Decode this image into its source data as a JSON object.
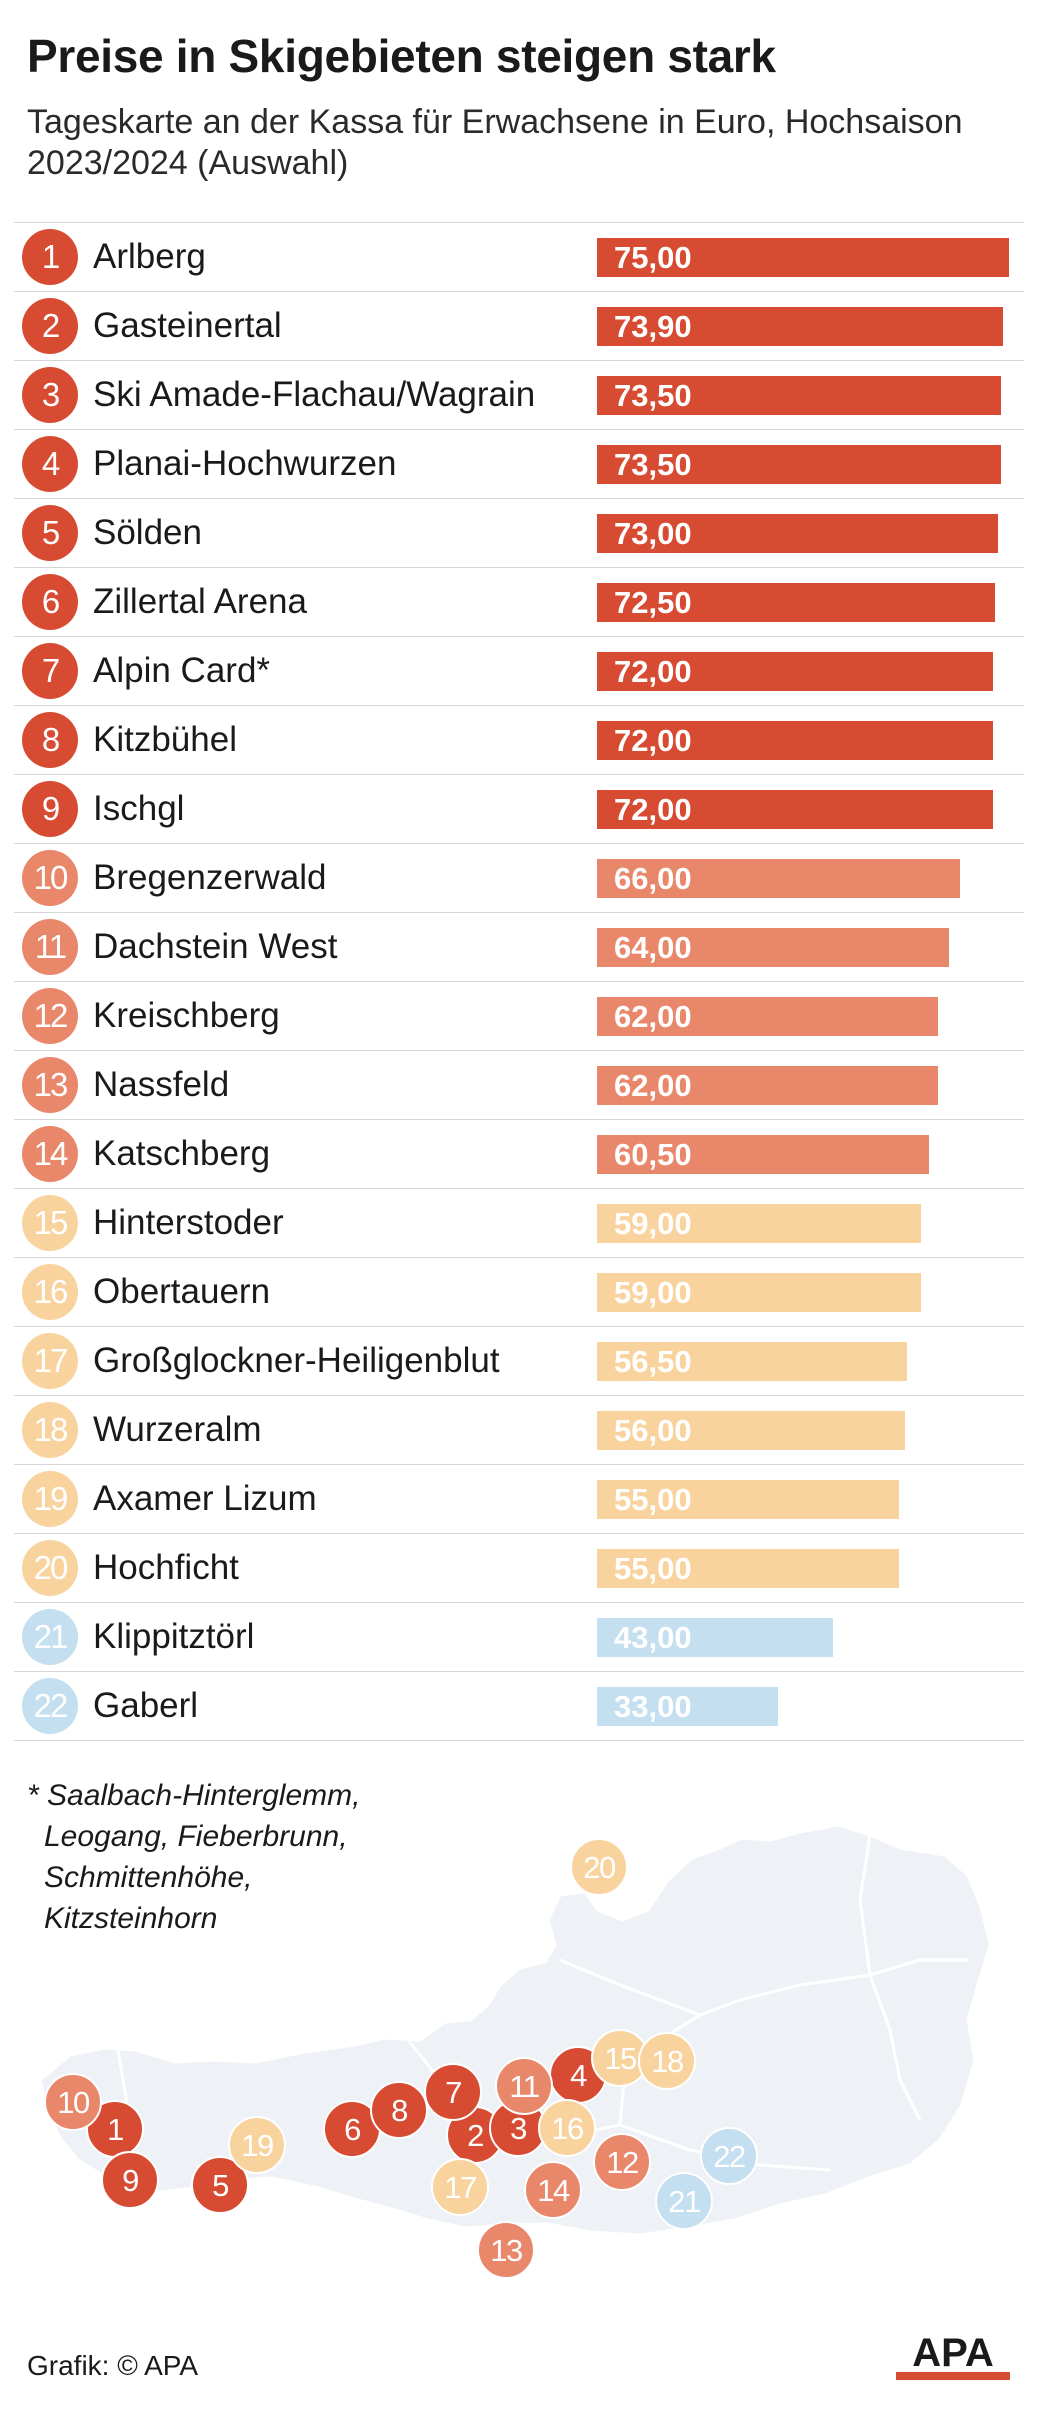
{
  "title": "Preise in Skigebieten steigen stark",
  "subtitle": "Tageskarte an der Kassa für Erwachsene in Euro, Hochsaison 2023/2024 (Auswahl)",
  "colors": {
    "tier1": "#d84b33",
    "tier2": "#e9876a",
    "tier3": "#f9d39e",
    "tier4": "#c3dff0",
    "rule": "#d6d6d6",
    "map_land": "#eef1f5",
    "map_border": "#ffffff"
  },
  "chart_data": {
    "type": "bar",
    "orientation": "horizontal",
    "xlim": [
      0,
      75
    ],
    "rows": [
      {
        "rank": "1",
        "name": "Arlberg",
        "value": 75.0,
        "label": "75,00",
        "tier": "tier1"
      },
      {
        "rank": "2",
        "name": "Gasteinertal",
        "value": 73.9,
        "label": "73,90",
        "tier": "tier1"
      },
      {
        "rank": "3",
        "name": "Ski Amade-Flachau/Wagrain",
        "value": 73.5,
        "label": "73,50",
        "tier": "tier1"
      },
      {
        "rank": "4",
        "name": "Planai-Hochwurzen",
        "value": 73.5,
        "label": "73,50",
        "tier": "tier1"
      },
      {
        "rank": "5",
        "name": "Sölden",
        "value": 73.0,
        "label": "73,00",
        "tier": "tier1"
      },
      {
        "rank": "6",
        "name": "Zillertal Arena",
        "value": 72.5,
        "label": "72,50",
        "tier": "tier1"
      },
      {
        "rank": "7",
        "name": "Alpin Card*",
        "value": 72.0,
        "label": "72,00",
        "tier": "tier1"
      },
      {
        "rank": "8",
        "name": "Kitzbühel",
        "value": 72.0,
        "label": "72,00",
        "tier": "tier1"
      },
      {
        "rank": "9",
        "name": "Ischgl",
        "value": 72.0,
        "label": "72,00",
        "tier": "tier1"
      },
      {
        "rank": "10",
        "name": "Bregenzerwald",
        "value": 66.0,
        "label": "66,00",
        "tier": "tier2"
      },
      {
        "rank": "11",
        "name": "Dachstein West",
        "value": 64.0,
        "label": "64,00",
        "tier": "tier2"
      },
      {
        "rank": "12",
        "name": "Kreischberg",
        "value": 62.0,
        "label": "62,00",
        "tier": "tier2"
      },
      {
        "rank": "13",
        "name": "Nassfeld",
        "value": 62.0,
        "label": "62,00",
        "tier": "tier2"
      },
      {
        "rank": "14",
        "name": "Katschberg",
        "value": 60.5,
        "label": "60,50",
        "tier": "tier2"
      },
      {
        "rank": "15",
        "name": "Hinterstoder",
        "value": 59.0,
        "label": "59,00",
        "tier": "tier3"
      },
      {
        "rank": "16",
        "name": "Obertauern",
        "value": 59.0,
        "label": "59,00",
        "tier": "tier3"
      },
      {
        "rank": "17",
        "name": "Großglockner-Heiligenblut",
        "value": 56.5,
        "label": "56,50",
        "tier": "tier3"
      },
      {
        "rank": "18",
        "name": "Wurzeralm",
        "value": 56.0,
        "label": "56,00",
        "tier": "tier3"
      },
      {
        "rank": "19",
        "name": "Axamer Lizum",
        "value": 55.0,
        "label": "55,00",
        "tier": "tier3"
      },
      {
        "rank": "20",
        "name": "Hochficht",
        "value": 55.0,
        "label": "55,00",
        "tier": "tier3"
      },
      {
        "rank": "21",
        "name": "Klippitztörl",
        "value": 43.0,
        "label": "43,00",
        "tier": "tier4"
      },
      {
        "rank": "22",
        "name": "Gaberl",
        "value": 33.0,
        "label": "33,00",
        "tier": "tier4"
      }
    ]
  },
  "footnote": [
    "* Saalbach-Hinterglemm,",
    "Leogang, Fieberbrunn,",
    "Schmittenhöhe,",
    "Kitzsteinhorn"
  ],
  "credit": "Grafik: © APA",
  "logo_text": "APA"
}
